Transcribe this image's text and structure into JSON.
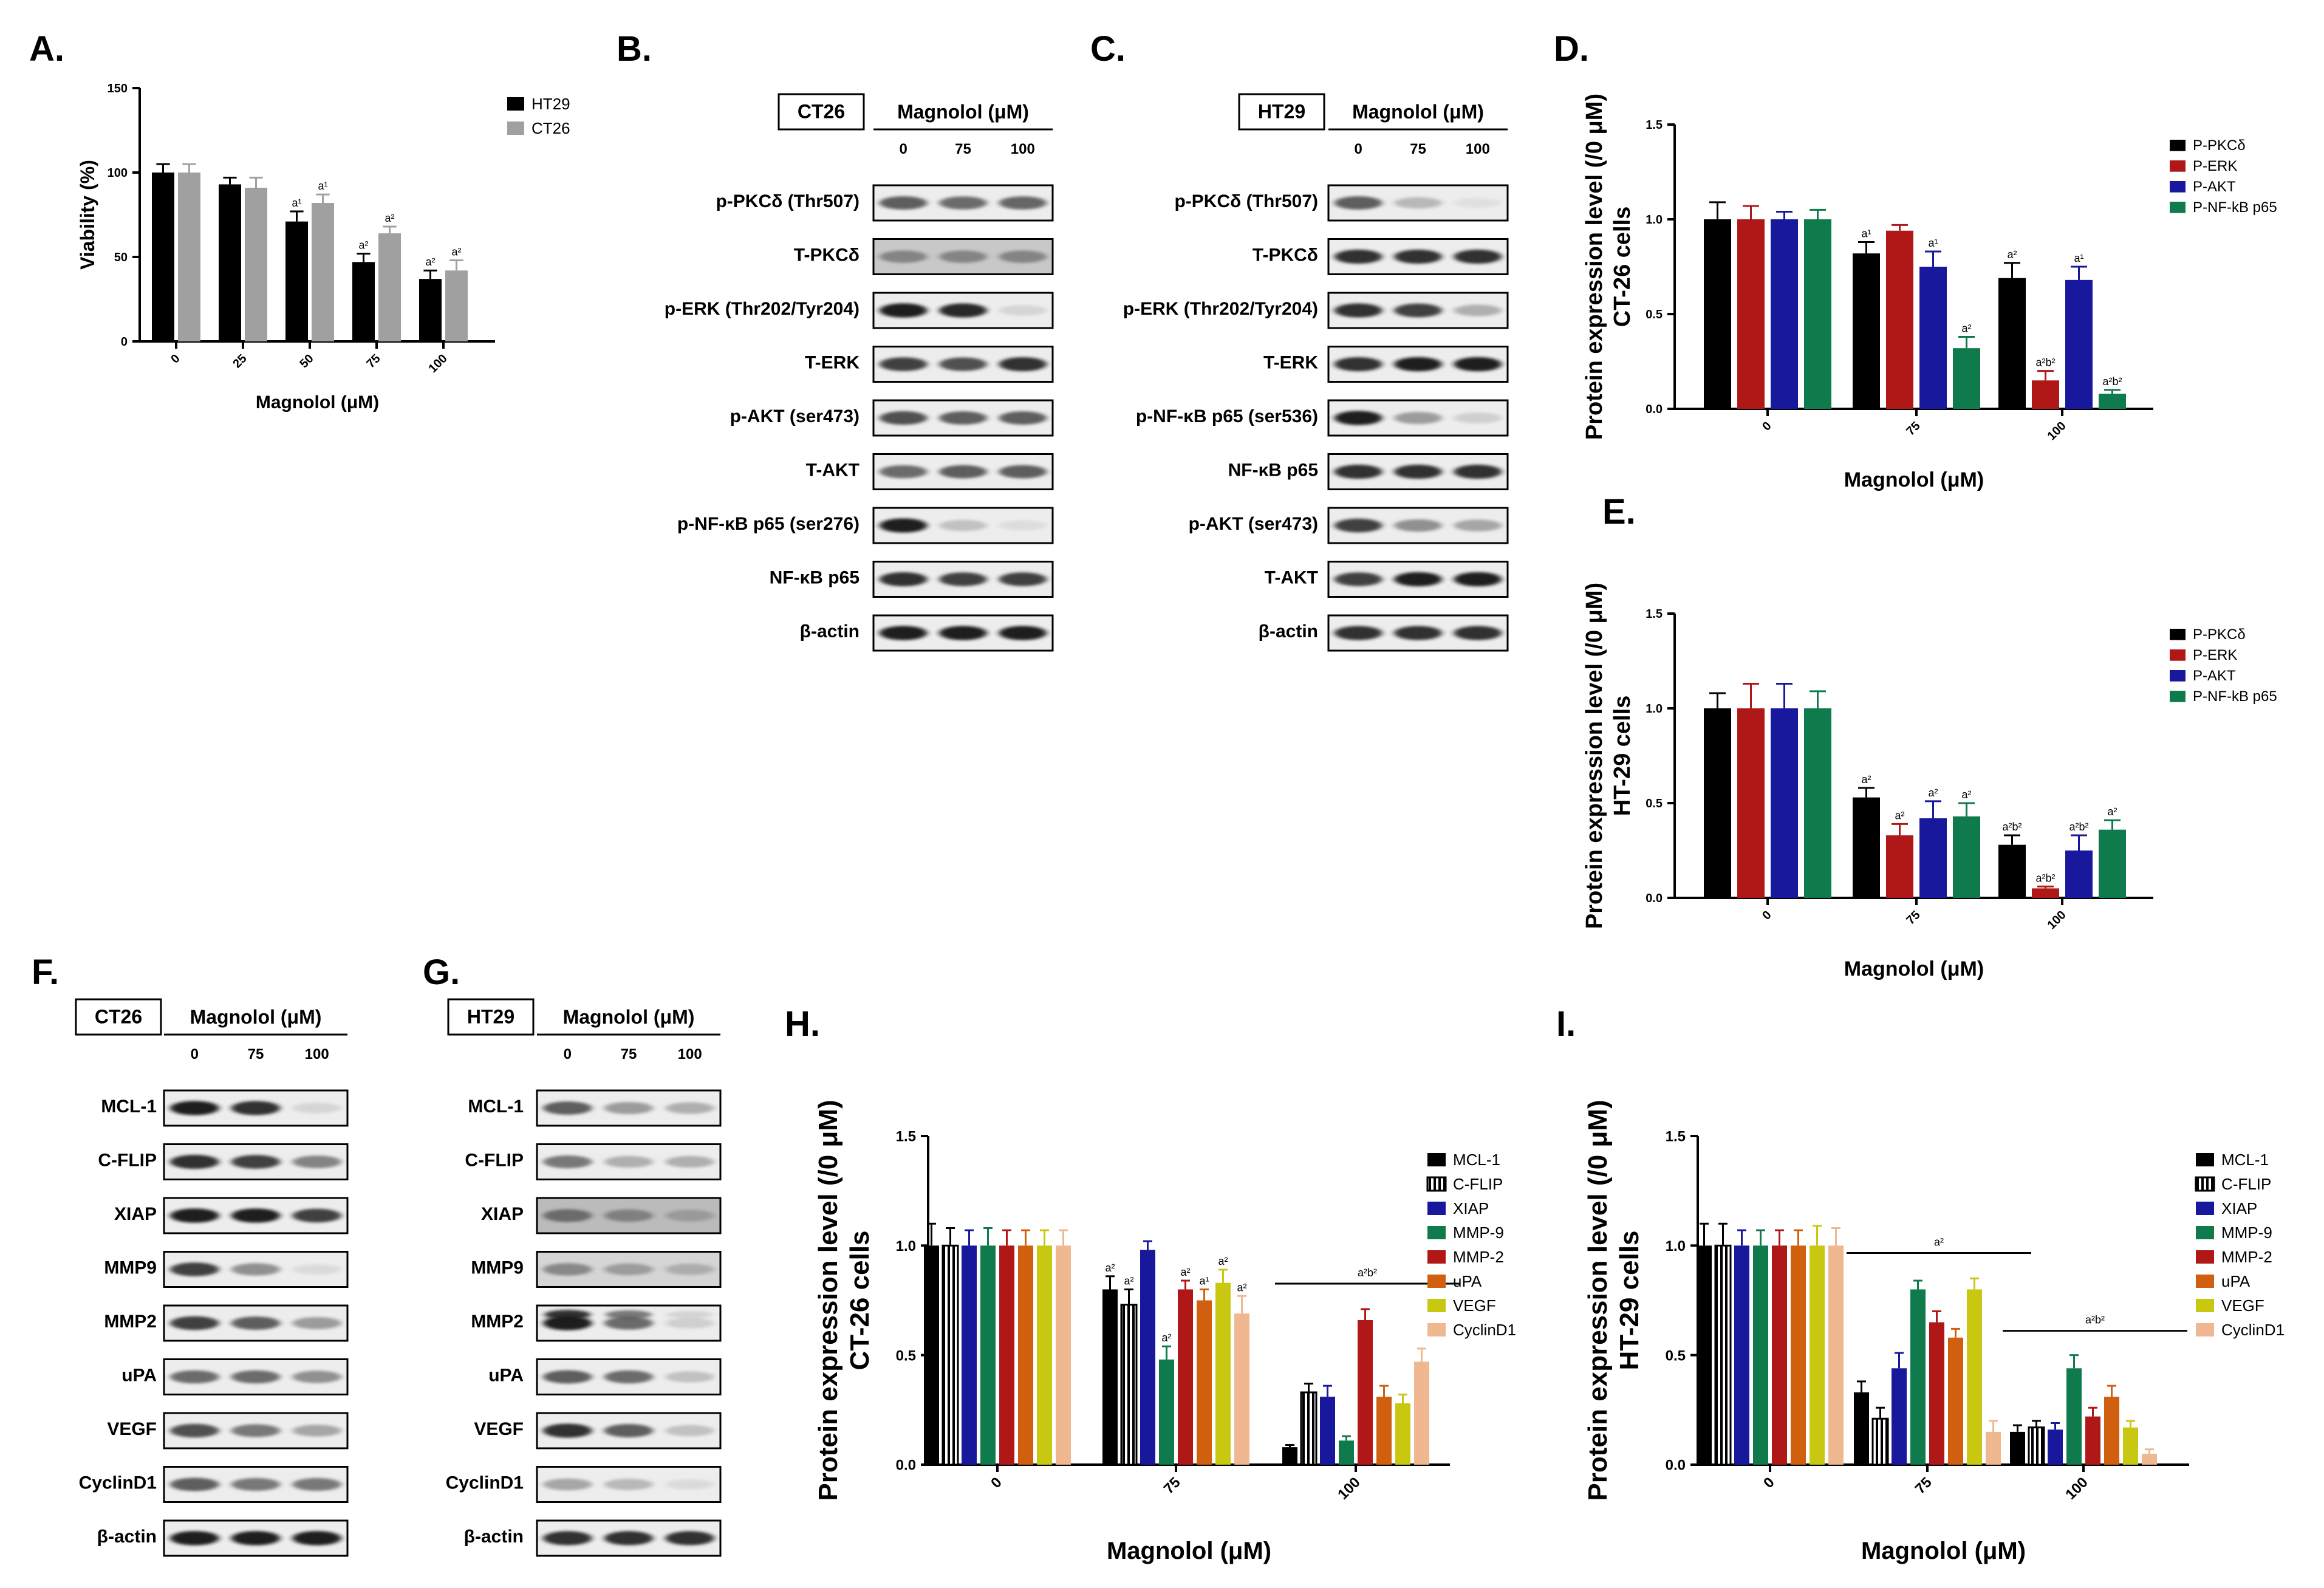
{
  "panel_labels": {
    "A": "A.",
    "B": "B.",
    "C": "C.",
    "D": "D.",
    "E": "E.",
    "F": "F.",
    "G": "G.",
    "H": "H.",
    "I": "I."
  },
  "chart_data": [
    {
      "panel": "A",
      "type": "bar",
      "categories": [
        "0",
        "25",
        "50",
        "75",
        "100"
      ],
      "series": [
        {
          "name": "HT29",
          "color": "#000000",
          "values": [
            100,
            93,
            71,
            47,
            37
          ],
          "errors": [
            5,
            4,
            6,
            5,
            5
          ],
          "annotations": [
            "",
            "",
            "a¹",
            "a²",
            "a²"
          ]
        },
        {
          "name": "CT26",
          "color": "#a0a0a0",
          "values": [
            100,
            91,
            82,
            64,
            42
          ],
          "errors": [
            5,
            6,
            5,
            4,
            6
          ],
          "annotations": [
            "",
            "",
            "a¹",
            "a²",
            "a²"
          ]
        }
      ],
      "xlabel": "Magnolol (μM)",
      "ylabel": "Viability (%)",
      "ylim": [
        0,
        150
      ],
      "yticks": [
        "0",
        "50",
        "100",
        "150"
      ],
      "grid": false,
      "legend": "top-right"
    },
    {
      "panel": "D",
      "type": "bar",
      "categories": [
        "0",
        "75",
        "100"
      ],
      "series": [
        {
          "name": "P-PKCδ",
          "color": "#000000",
          "values": [
            1.0,
            0.82,
            0.69
          ],
          "errors": [
            0.09,
            0.06,
            0.08
          ],
          "annotations": [
            "",
            "a¹",
            "a²"
          ]
        },
        {
          "name": "P-ERK",
          "color": "#b01818",
          "values": [
            1.0,
            0.94,
            0.15
          ],
          "errors": [
            0.07,
            0.03,
            0.05
          ],
          "annotations": [
            "",
            "",
            "a²b²"
          ]
        },
        {
          "name": "P-AKT",
          "color": "#18189c",
          "values": [
            1.0,
            0.75,
            0.68
          ],
          "errors": [
            0.04,
            0.08,
            0.07
          ],
          "annotations": [
            "",
            "a¹",
            "a¹"
          ]
        },
        {
          "name": "P-NF-kB p65",
          "color": "#0f7a4c",
          "values": [
            1.0,
            0.32,
            0.08
          ],
          "errors": [
            0.05,
            0.06,
            0.02
          ],
          "annotations": [
            "",
            "a²",
            "a²b²"
          ]
        }
      ],
      "xlabel": "Magnolol (μM)",
      "ylabel": "Protein expression level (/0 μM)",
      "ylabel2": "CT-26 cells",
      "ylim": [
        0,
        1.5
      ],
      "yticks": [
        "0.0",
        "0.5",
        "1.0",
        "1.5"
      ],
      "grid": false,
      "legend": "top-right"
    },
    {
      "panel": "E",
      "type": "bar",
      "categories": [
        "0",
        "75",
        "100"
      ],
      "series": [
        {
          "name": "P-PKCδ",
          "color": "#000000",
          "values": [
            1.0,
            0.53,
            0.28
          ],
          "errors": [
            0.08,
            0.05,
            0.05
          ],
          "annotations": [
            "",
            "a²",
            "a²b²"
          ]
        },
        {
          "name": "P-ERK",
          "color": "#b01818",
          "values": [
            1.0,
            0.33,
            0.05
          ],
          "errors": [
            0.13,
            0.06,
            0.01
          ],
          "annotations": [
            "",
            "a²",
            "a²b²"
          ]
        },
        {
          "name": "P-AKT",
          "color": "#18189c",
          "values": [
            1.0,
            0.42,
            0.25
          ],
          "errors": [
            0.13,
            0.09,
            0.08
          ],
          "annotations": [
            "",
            "a²",
            "a²b²"
          ]
        },
        {
          "name": "P-NF-kB p65",
          "color": "#0f7a4c",
          "values": [
            1.0,
            0.43,
            0.36
          ],
          "errors": [
            0.09,
            0.07,
            0.05
          ],
          "annotations": [
            "",
            "a²",
            "a²"
          ]
        }
      ],
      "xlabel": "Magnolol (μM)",
      "ylabel": "Protein expression level (/0 μM)",
      "ylabel2": "HT-29 cells",
      "ylim": [
        0,
        1.5
      ],
      "yticks": [
        "0.0",
        "0.5",
        "1.0",
        "1.5"
      ],
      "grid": false,
      "legend": "top-right"
    },
    {
      "panel": "H",
      "type": "bar",
      "categories": [
        "0",
        "75",
        "100"
      ],
      "series": [
        {
          "name": "MCL-1",
          "color": "#000000",
          "values": [
            1.0,
            0.8,
            0.08
          ],
          "errors": [
            0.1,
            0.06,
            0.01
          ]
        },
        {
          "name": "C-FLIP",
          "color": "#000000",
          "hatch": true,
          "values": [
            1.0,
            0.73,
            0.33
          ],
          "errors": [
            0.08,
            0.07,
            0.04
          ]
        },
        {
          "name": "XIAP",
          "color": "#18189c",
          "values": [
            1.0,
            0.98,
            0.31
          ],
          "errors": [
            0.07,
            0.04,
            0.05
          ]
        },
        {
          "name": "MMP-9",
          "color": "#0f7a4c",
          "values": [
            1.0,
            0.48,
            0.11
          ],
          "errors": [
            0.08,
            0.06,
            0.02
          ]
        },
        {
          "name": "MMP-2",
          "color": "#b01818",
          "values": [
            1.0,
            0.8,
            0.66
          ],
          "errors": [
            0.07,
            0.04,
            0.05
          ]
        },
        {
          "name": "uPA",
          "color": "#d06010",
          "values": [
            1.0,
            0.75,
            0.31
          ],
          "errors": [
            0.07,
            0.05,
            0.05
          ]
        },
        {
          "name": "VEGF",
          "color": "#c8c810",
          "values": [
            1.0,
            0.83,
            0.28
          ],
          "errors": [
            0.07,
            0.06,
            0.04
          ]
        },
        {
          "name": "CyclinD1",
          "color": "#f0b890",
          "values": [
            1.0,
            0.69,
            0.47
          ],
          "errors": [
            0.07,
            0.08,
            0.06
          ]
        }
      ],
      "annotations": [
        {
          "category": "75",
          "series": "MCL-1",
          "text": "a²"
        },
        {
          "category": "75",
          "series": "C-FLIP",
          "text": "a²"
        },
        {
          "category": "75",
          "series": "MMP-9",
          "text": "a²"
        },
        {
          "category": "75",
          "series": "uPA",
          "text": "a¹"
        },
        {
          "category": "75",
          "series": "MMP-2",
          "text": "a²"
        },
        {
          "category": "75",
          "series": "VEGF",
          "text": "a²"
        },
        {
          "category": "75",
          "series": "CyclinD1",
          "text": "a²"
        },
        {
          "category": "100",
          "group": true,
          "text": "a²b²"
        }
      ],
      "xlabel": "Magnolol (μM)",
      "ylabel": "Protein expression level (/0 μM)",
      "ylabel2": "CT-26 cells",
      "ylim": [
        0,
        1.5
      ],
      "yticks": [
        "0.0",
        "0.5",
        "1.0",
        "1.5"
      ],
      "grid": false,
      "legend": "top-right"
    },
    {
      "panel": "I",
      "type": "bar",
      "categories": [
        "0",
        "75",
        "100"
      ],
      "series": [
        {
          "name": "MCL-1",
          "color": "#000000",
          "values": [
            1.0,
            0.33,
            0.15
          ],
          "errors": [
            0.1,
            0.05,
            0.03
          ]
        },
        {
          "name": "C-FLIP",
          "color": "#000000",
          "hatch": true,
          "values": [
            1.0,
            0.21,
            0.17
          ],
          "errors": [
            0.1,
            0.05,
            0.03
          ]
        },
        {
          "name": "XIAP",
          "color": "#18189c",
          "values": [
            1.0,
            0.44,
            0.16
          ],
          "errors": [
            0.07,
            0.07,
            0.03
          ]
        },
        {
          "name": "MMP-9",
          "color": "#0f7a4c",
          "values": [
            1.0,
            0.8,
            0.44
          ],
          "errors": [
            0.07,
            0.04,
            0.06
          ]
        },
        {
          "name": "MMP-2",
          "color": "#b01818",
          "values": [
            1.0,
            0.65,
            0.22
          ],
          "errors": [
            0.07,
            0.05,
            0.04
          ]
        },
        {
          "name": "uPA",
          "color": "#d06010",
          "values": [
            1.0,
            0.58,
            0.31
          ],
          "errors": [
            0.07,
            0.04,
            0.05
          ]
        },
        {
          "name": "VEGF",
          "color": "#c8c810",
          "values": [
            1.0,
            0.8,
            0.17
          ],
          "errors": [
            0.09,
            0.05,
            0.03
          ]
        },
        {
          "name": "CyclinD1",
          "color": "#f0b890",
          "values": [
            1.0,
            0.15,
            0.05
          ],
          "errors": [
            0.08,
            0.05,
            0.02
          ]
        }
      ],
      "annotations": [
        {
          "category": "75",
          "group": true,
          "text": "a²"
        },
        {
          "category": "100",
          "group": true,
          "text": "a²b²"
        }
      ],
      "xlabel": "Magnolol (μM)",
      "ylabel": "Protein expression level (/0 μM)",
      "ylabel2": "HT-29 cells",
      "ylim": [
        0,
        1.5
      ],
      "yticks": [
        "0.0",
        "0.5",
        "1.0",
        "1.5"
      ],
      "grid": false,
      "legend": "top-right"
    }
  ],
  "blots": [
    {
      "panel": "B",
      "cell_line": "CT26",
      "treatment": "Magnolol (μM)",
      "lanes": [
        "0",
        "75",
        "100"
      ],
      "rows": [
        {
          "label": "p-PKCδ (Thr507)",
          "intensity": [
            0.75,
            0.7,
            0.72
          ]
        },
        {
          "label": "T-PKCδ",
          "intensity": [
            0.55,
            0.55,
            0.55
          ],
          "background": 0.35
        },
        {
          "label": "p-ERK (Thr202/Tyr204)",
          "intensity": [
            0.95,
            0.92,
            0.15
          ]
        },
        {
          "label": "T-ERK",
          "intensity": [
            0.85,
            0.8,
            0.9
          ]
        },
        {
          "label": "p-AKT (ser473)",
          "intensity": [
            0.8,
            0.75,
            0.75
          ]
        },
        {
          "label": "T-AKT",
          "intensity": [
            0.7,
            0.75,
            0.75
          ]
        },
        {
          "label": "p-NF-κB p65 (ser276)",
          "intensity": [
            0.95,
            0.3,
            0.08
          ]
        },
        {
          "label": "NF-κB p65",
          "intensity": [
            0.9,
            0.85,
            0.85
          ]
        },
        {
          "label": "β-actin",
          "intensity": [
            0.95,
            0.95,
            0.95
          ]
        }
      ]
    },
    {
      "panel": "C",
      "cell_line": "HT29",
      "treatment": "Magnolol (μM)",
      "lanes": [
        "0",
        "75",
        "100"
      ],
      "rows": [
        {
          "label": "p-PKCδ (Thr507)",
          "intensity": [
            0.75,
            0.35,
            0.05
          ]
        },
        {
          "label": "T-PKCδ",
          "intensity": [
            0.9,
            0.9,
            0.9
          ]
        },
        {
          "label": "p-ERK (Thr202/Tyr204)",
          "intensity": [
            0.9,
            0.85,
            0.4
          ]
        },
        {
          "label": "T-ERK",
          "intensity": [
            0.9,
            0.95,
            0.95
          ]
        },
        {
          "label": "p-NF-κB p65 (ser536)",
          "intensity": [
            0.95,
            0.5,
            0.2
          ]
        },
        {
          "label": "NF-κB p65",
          "intensity": [
            0.9,
            0.9,
            0.9
          ]
        },
        {
          "label": "p-AKT (ser473)",
          "intensity": [
            0.85,
            0.55,
            0.45
          ]
        },
        {
          "label": "T-AKT",
          "intensity": [
            0.85,
            0.95,
            0.95
          ]
        },
        {
          "label": "β-actin",
          "intensity": [
            0.9,
            0.9,
            0.9
          ]
        }
      ]
    },
    {
      "panel": "F",
      "cell_line": "CT26",
      "treatment": "Magnolol (μM)",
      "lanes": [
        "0",
        "75",
        "100"
      ],
      "rows": [
        {
          "label": "MCL-1",
          "intensity": [
            0.95,
            0.9,
            0.15
          ]
        },
        {
          "label": "C-FLIP",
          "intensity": [
            0.9,
            0.85,
            0.6
          ]
        },
        {
          "label": "XIAP",
          "intensity": [
            0.95,
            0.95,
            0.85
          ]
        },
        {
          "label": "MMP9",
          "intensity": [
            0.85,
            0.55,
            0.1
          ]
        },
        {
          "label": "MMP2",
          "intensity": [
            0.85,
            0.75,
            0.5
          ]
        },
        {
          "label": "uPA",
          "intensity": [
            0.7,
            0.7,
            0.55
          ]
        },
        {
          "label": "VEGF",
          "intensity": [
            0.8,
            0.65,
            0.45
          ]
        },
        {
          "label": "CyclinD1",
          "intensity": [
            0.75,
            0.65,
            0.65
          ]
        },
        {
          "label": "β-actin",
          "intensity": [
            0.95,
            0.95,
            0.95
          ]
        }
      ]
    },
    {
      "panel": "G",
      "cell_line": "HT29",
      "treatment": "Magnolol (μM)",
      "lanes": [
        "0",
        "75",
        "100"
      ],
      "rows": [
        {
          "label": "MCL-1",
          "intensity": [
            0.75,
            0.5,
            0.4
          ]
        },
        {
          "label": "C-FLIP",
          "intensity": [
            0.65,
            0.4,
            0.4
          ]
        },
        {
          "label": "XIAP",
          "intensity": [
            0.65,
            0.55,
            0.4
          ],
          "background": 0.45
        },
        {
          "label": "MMP9",
          "intensity": [
            0.55,
            0.45,
            0.35
          ],
          "background": 0.25
        },
        {
          "label": "MMP2",
          "intensity": [
            0.95,
            0.7,
            0.2
          ],
          "double": true
        },
        {
          "label": "uPA",
          "intensity": [
            0.75,
            0.7,
            0.3
          ]
        },
        {
          "label": "VEGF",
          "intensity": [
            0.9,
            0.75,
            0.3
          ]
        },
        {
          "label": "CyclinD1",
          "intensity": [
            0.45,
            0.35,
            0.1
          ]
        },
        {
          "label": "β-actin",
          "intensity": [
            0.9,
            0.9,
            0.9
          ]
        }
      ]
    }
  ]
}
